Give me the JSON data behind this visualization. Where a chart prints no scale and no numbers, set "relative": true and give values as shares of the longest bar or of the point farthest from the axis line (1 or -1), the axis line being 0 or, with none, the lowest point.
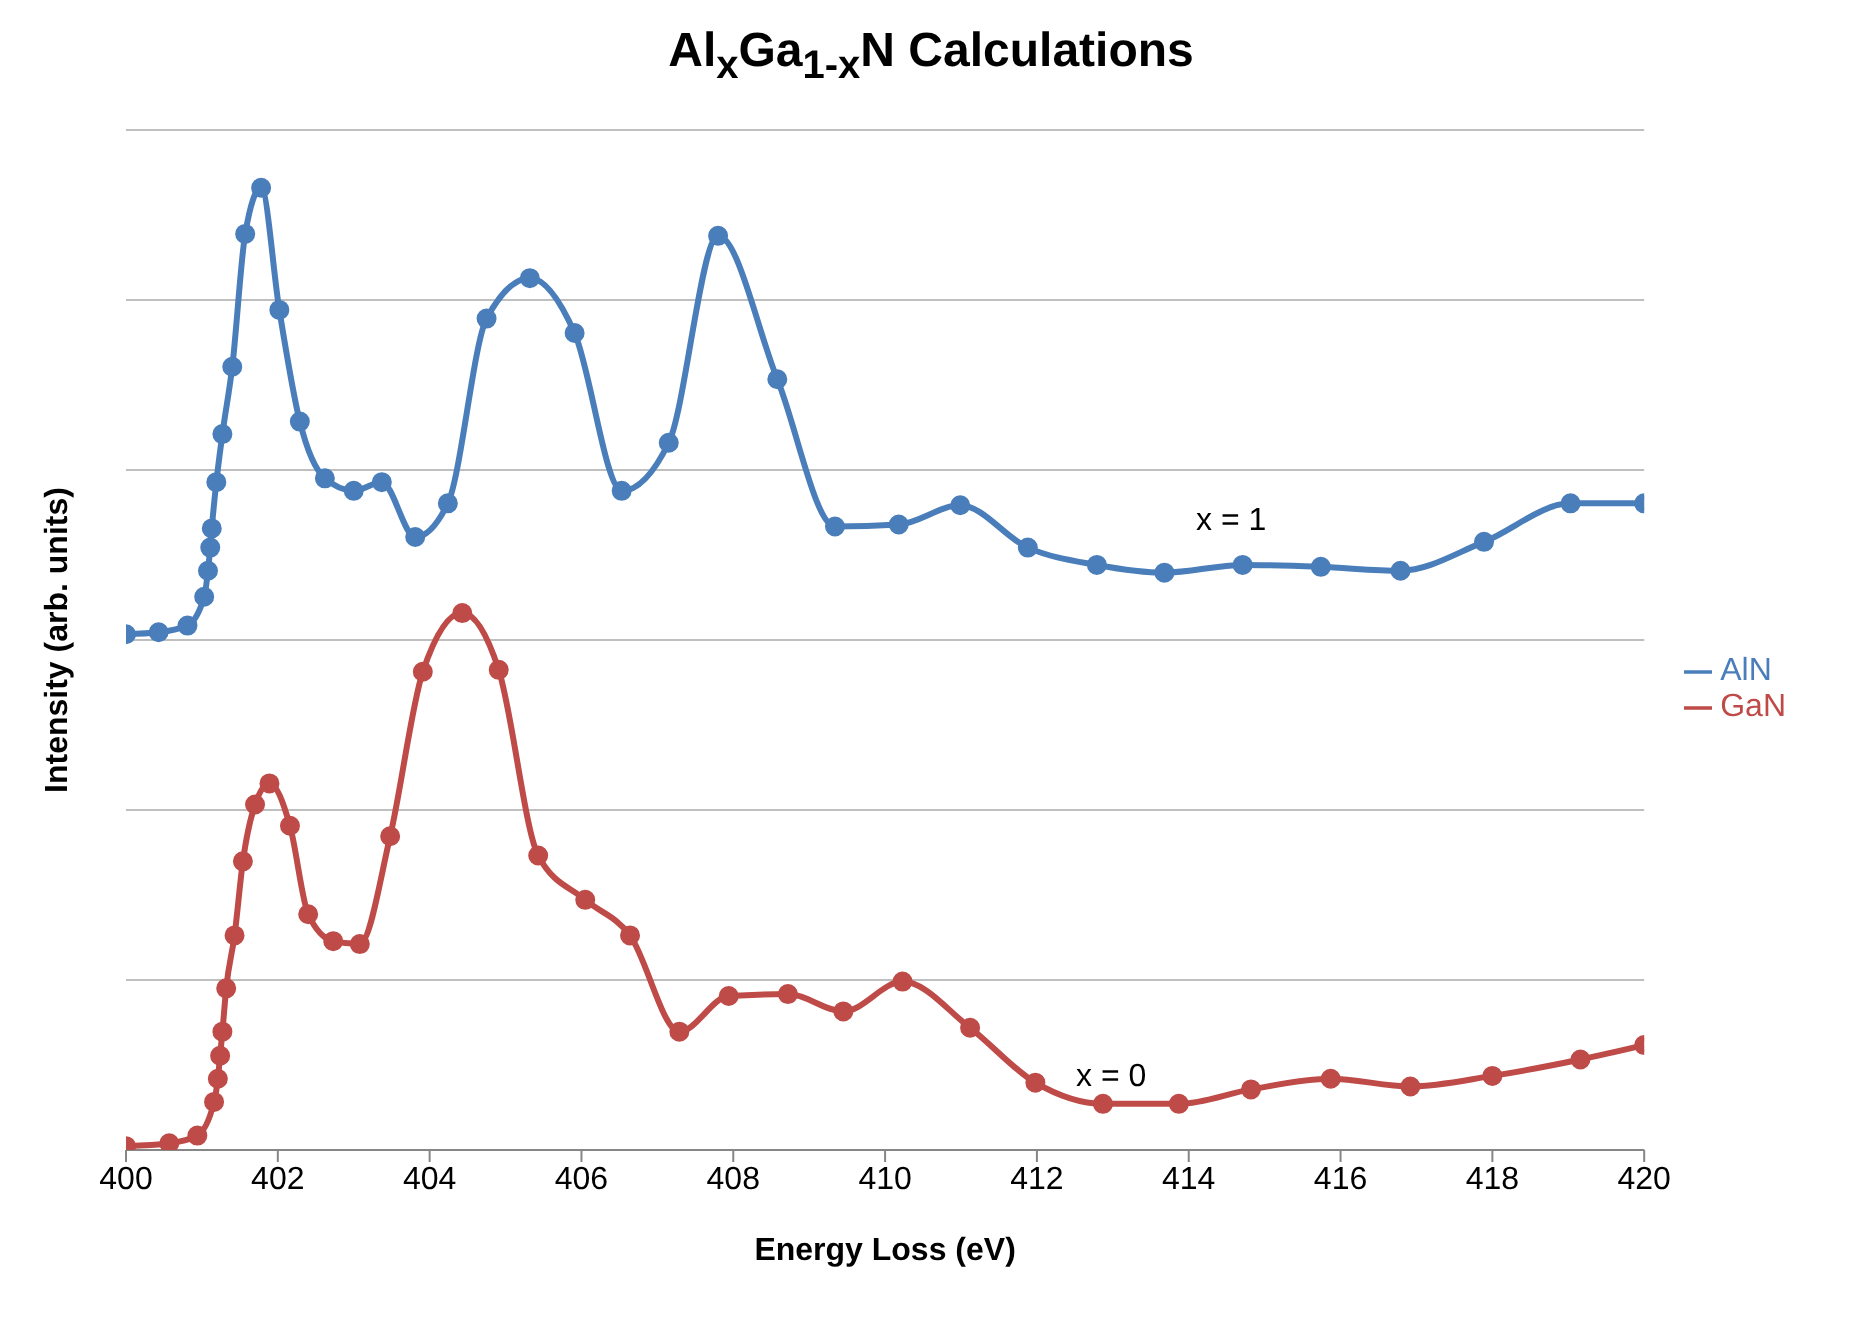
{
  "chart_data": {
    "type": "line",
    "title": "Al$_{x}$Ga$_{1-x}$N Calculations",
    "xlabel": "Energy Loss (eV)",
    "ylabel": "Intensity (arb. units)",
    "relative": true,
    "xlim": [
      400,
      420
    ],
    "xticks": [
      400,
      402,
      404,
      406,
      408,
      410,
      412,
      414,
      416,
      418,
      420
    ],
    "grid": "y",
    "legend": "right",
    "marker": "circle",
    "line_style": "solid",
    "annotations": [
      "x = 1",
      "x = 0"
    ],
    "series": [
      {
        "name": "AlN",
        "color": "#4a7ebb",
        "x": [
          400,
          400.43,
          400.81,
          401.03,
          401.08,
          401.11,
          401.13,
          401.19,
          401.27,
          401.4,
          401.57,
          401.78,
          402.02,
          402.29,
          402.62,
          403,
          403.37,
          403.81,
          404.24,
          404.75,
          405.32,
          405.91,
          406.53,
          407.15,
          407.8,
          408.58,
          409.34,
          410.18,
          410.99,
          411.88,
          412.79,
          413.68,
          414.71,
          415.74,
          416.79,
          417.89,
          419.03,
          420
        ],
        "values": [
          0.536,
          0.538,
          0.545,
          0.575,
          0.602,
          0.626,
          0.646,
          0.694,
          0.744,
          0.814,
          0.952,
          1,
          0.873,
          0.757,
          0.698,
          0.685,
          0.694,
          0.637,
          0.672,
          0.864,
          0.906,
          0.849,
          0.685,
          0.735,
          0.95,
          0.801,
          0.648,
          0.65,
          0.67,
          0.626,
          0.608,
          0.6,
          0.608,
          0.606,
          0.602,
          0.632,
          0.672,
          0.672
        ]
      },
      {
        "name": "GaN",
        "color": "#be4b48",
        "x": [
          400,
          400.57,
          400.94,
          401.16,
          401.21,
          401.24,
          401.27,
          401.32,
          401.43,
          401.54,
          401.7,
          401.89,
          402.16,
          402.4,
          402.73,
          403.08,
          403.48,
          403.91,
          404.43,
          404.91,
          405.43,
          406.05,
          406.64,
          407.29,
          407.94,
          408.72,
          409.45,
          410.23,
          411.12,
          411.98,
          412.87,
          413.87,
          414.82,
          415.87,
          416.92,
          418,
          419.16,
          420
        ],
        "values": [
          0.004,
          0.007,
          0.015,
          0.05,
          0.074,
          0.098,
          0.123,
          0.168,
          0.223,
          0.3,
          0.359,
          0.381,
          0.337,
          0.245,
          0.217,
          0.214,
          0.326,
          0.497,
          0.558,
          0.499,
          0.306,
          0.26,
          0.223,
          0.123,
          0.16,
          0.162,
          0.144,
          0.175,
          0.127,
          0.07,
          0.048,
          0.048,
          0.063,
          0.074,
          0.066,
          0.077,
          0.094,
          0.109
        ]
      }
    ]
  }
}
